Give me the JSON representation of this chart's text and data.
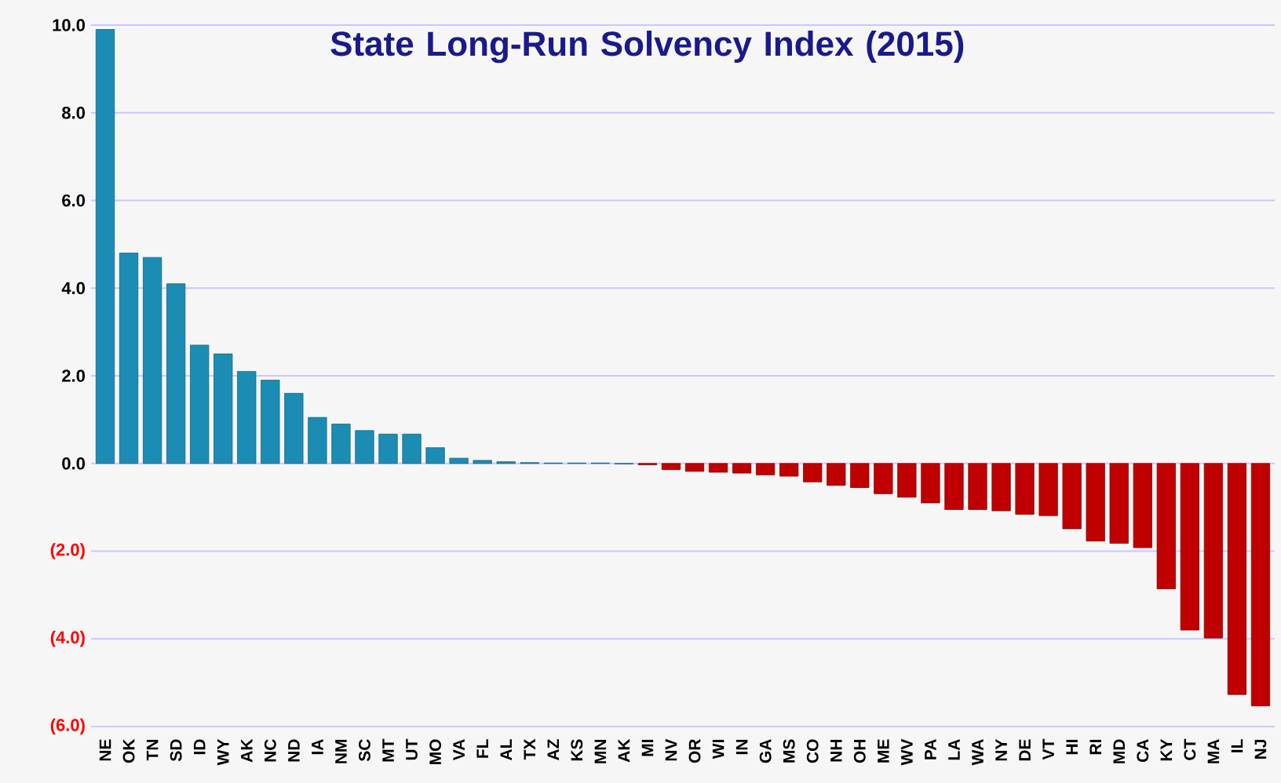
{
  "chart_data": {
    "type": "bar",
    "title": "State Long-Run Solvency Index (2015)",
    "categories": [
      "NE",
      "OK",
      "TN",
      "SD",
      "ID",
      "WY",
      "AK",
      "NC",
      "ND",
      "IA",
      "NM",
      "SC",
      "MT",
      "UT",
      "MO",
      "VA",
      "FL",
      "AL",
      "TX",
      "AZ",
      "KS",
      "MN",
      "AK",
      "MI",
      "NV",
      "OR",
      "WI",
      "IN",
      "GA",
      "MS",
      "CO",
      "NH",
      "OH",
      "ME",
      "WV",
      "PA",
      "LA",
      "WA",
      "NY",
      "DE",
      "VT",
      "HI",
      "RI",
      "MD",
      "CA",
      "KY",
      "CT",
      "MA",
      "IL",
      "NJ"
    ],
    "values": [
      9.9,
      4.8,
      4.7,
      4.1,
      2.7,
      2.5,
      2.1,
      1.9,
      1.6,
      1.05,
      0.9,
      0.75,
      0.67,
      0.67,
      0.36,
      0.12,
      0.07,
      0.04,
      0.02,
      0.01,
      0.01,
      0.01,
      -0.01,
      -0.03,
      -0.14,
      -0.18,
      -0.2,
      -0.22,
      -0.26,
      -0.29,
      -0.42,
      -0.5,
      -0.55,
      -0.69,
      -0.77,
      -0.9,
      -1.05,
      -1.05,
      -1.08,
      -1.16,
      -1.19,
      -1.49,
      -1.77,
      -1.82,
      -1.92,
      -2.86,
      -3.8,
      -3.98,
      -5.27,
      -5.53
    ],
    "colors": [
      "#1b8db5",
      "#1b8db5",
      "#1b8db5",
      "#1b8db5",
      "#1b8db5",
      "#1b8db5",
      "#1b8db5",
      "#1b8db5",
      "#1b8db5",
      "#1b8db5",
      "#1b8db5",
      "#1b8db5",
      "#1b8db5",
      "#1b8db5",
      "#1b8db5",
      "#1b8db5",
      "#1b8db5",
      "#1b8db5",
      "#1b8db5",
      "#1b8db5",
      "#1b8db5",
      "#1b8db5",
      "#1b8db5",
      "#c00000",
      "#c00000",
      "#c00000",
      "#c00000",
      "#c00000",
      "#c00000",
      "#c00000",
      "#c00000",
      "#c00000",
      "#c00000",
      "#c00000",
      "#c00000",
      "#c00000",
      "#c00000",
      "#c00000",
      "#c00000",
      "#c00000",
      "#c00000",
      "#c00000",
      "#c00000",
      "#c00000",
      "#c00000",
      "#c00000",
      "#c00000",
      "#c00000",
      "#c00000",
      "#c00000"
    ],
    "ylim": [
      -6,
      10
    ],
    "yticks": [
      {
        "value": -6,
        "label": "(6.0)"
      },
      {
        "value": -4,
        "label": "(4.0)"
      },
      {
        "value": -2,
        "label": "(2.0)"
      },
      {
        "value": 0,
        "label": "0.0"
      },
      {
        "value": 2,
        "label": "2.0"
      },
      {
        "value": 4,
        "label": "4.0"
      },
      {
        "value": 6,
        "label": "6.0"
      },
      {
        "value": 8,
        "label": "8.0"
      },
      {
        "value": 10,
        "label": "10.0"
      }
    ],
    "grid": "y"
  }
}
